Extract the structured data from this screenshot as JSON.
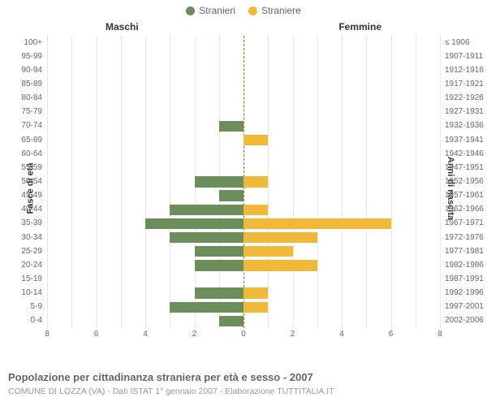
{
  "legend": {
    "male": "Stranieri",
    "female": "Straniere"
  },
  "columns": {
    "male": "Maschi",
    "female": "Femmine"
  },
  "y_axis_left": "Fasce di età",
  "y_axis_right": "Anni di nascita",
  "caption": "Popolazione per cittadinanza straniera per età e sesso - 2007",
  "subcaption": "COMUNE DI LOZZA (VA) - Dati ISTAT 1° gennaio 2007 - Elaborazione TUTTITALIA.IT",
  "chart": {
    "type": "pyramid-bar",
    "xlim": 8,
    "xticks": [
      8,
      6,
      4,
      2,
      0,
      2,
      4,
      6,
      8
    ],
    "male_color": "#6b8e5a",
    "female_color": "#f0b93a",
    "grid_color": "#e6e6e6",
    "center_color": "#808000",
    "background_color": "#ffffff",
    "label_fontsize": 10,
    "title_fontsize": 12,
    "bar_height_ratio": 0.78,
    "rows": [
      {
        "age": "100+",
        "birth": "≤ 1906",
        "m": 0,
        "f": 0
      },
      {
        "age": "95-99",
        "birth": "1907-1911",
        "m": 0,
        "f": 0
      },
      {
        "age": "90-94",
        "birth": "1912-1916",
        "m": 0,
        "f": 0
      },
      {
        "age": "85-89",
        "birth": "1917-1921",
        "m": 0,
        "f": 0
      },
      {
        "age": "80-84",
        "birth": "1922-1926",
        "m": 0,
        "f": 0
      },
      {
        "age": "75-79",
        "birth": "1927-1931",
        "m": 0,
        "f": 0
      },
      {
        "age": "70-74",
        "birth": "1932-1936",
        "m": 1,
        "f": 0
      },
      {
        "age": "65-69",
        "birth": "1937-1941",
        "m": 0,
        "f": 1
      },
      {
        "age": "60-64",
        "birth": "1942-1946",
        "m": 0,
        "f": 0
      },
      {
        "age": "55-59",
        "birth": "1947-1951",
        "m": 0,
        "f": 0
      },
      {
        "age": "50-54",
        "birth": "1952-1956",
        "m": 2,
        "f": 1
      },
      {
        "age": "45-49",
        "birth": "1957-1961",
        "m": 1,
        "f": 0
      },
      {
        "age": "40-44",
        "birth": "1962-1966",
        "m": 3,
        "f": 1
      },
      {
        "age": "35-39",
        "birth": "1967-1971",
        "m": 4,
        "f": 6
      },
      {
        "age": "30-34",
        "birth": "1972-1976",
        "m": 3,
        "f": 3
      },
      {
        "age": "25-29",
        "birth": "1977-1981",
        "m": 2,
        "f": 2
      },
      {
        "age": "20-24",
        "birth": "1982-1986",
        "m": 2,
        "f": 3
      },
      {
        "age": "15-19",
        "birth": "1987-1991",
        "m": 0,
        "f": 0
      },
      {
        "age": "10-14",
        "birth": "1992-1996",
        "m": 2,
        "f": 1
      },
      {
        "age": "5-9",
        "birth": "1997-2001",
        "m": 3,
        "f": 1
      },
      {
        "age": "0-4",
        "birth": "2002-2006",
        "m": 1,
        "f": 0
      }
    ]
  }
}
